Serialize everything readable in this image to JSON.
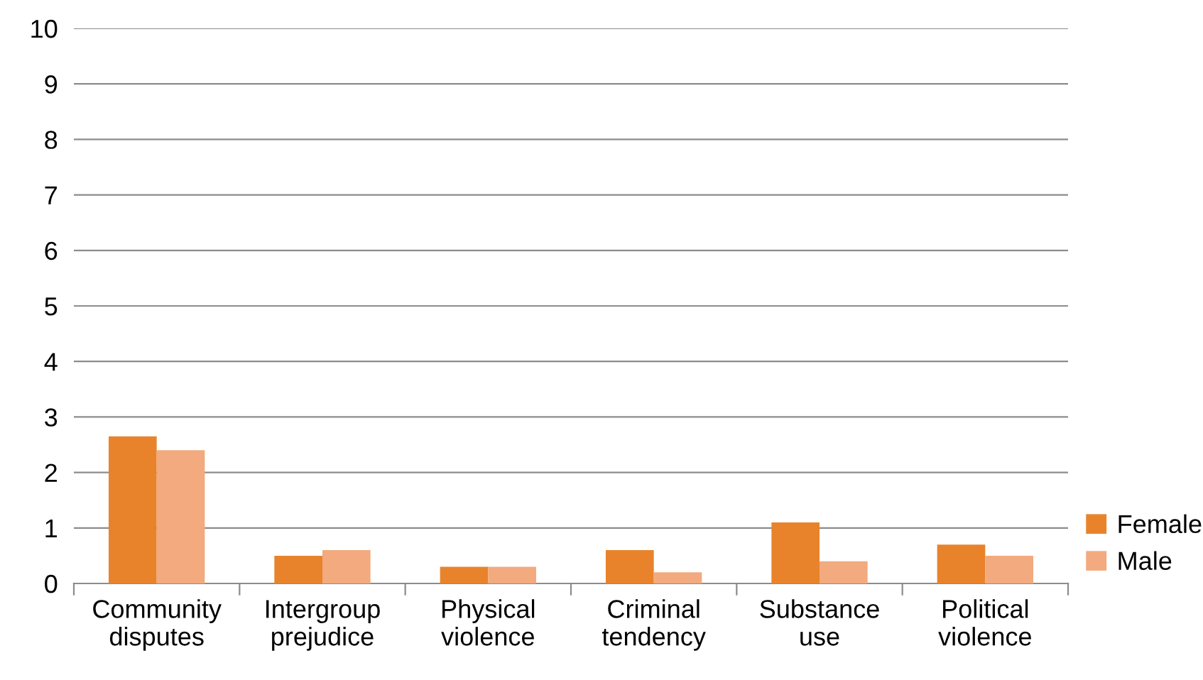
{
  "chart_data": {
    "type": "bar",
    "categories": [
      "Community\ndisputes",
      "Intergroup\nprejudice",
      "Physical\nviolence",
      "Criminal\ntendency",
      "Substance\nuse",
      "Political\nviolence"
    ],
    "series": [
      {
        "name": "Female",
        "color": "#e8832b",
        "values": [
          2.65,
          0.5,
          0.3,
          0.6,
          1.1,
          0.7
        ]
      },
      {
        "name": "Male",
        "color": "#f2aa7e",
        "values": [
          2.4,
          0.6,
          0.3,
          0.2,
          0.4,
          0.5
        ]
      }
    ],
    "ylim": [
      0,
      10
    ],
    "yticks": [
      0,
      1,
      2,
      3,
      4,
      5,
      6,
      7,
      8,
      9,
      10
    ],
    "grid": "y",
    "legend": "right"
  }
}
